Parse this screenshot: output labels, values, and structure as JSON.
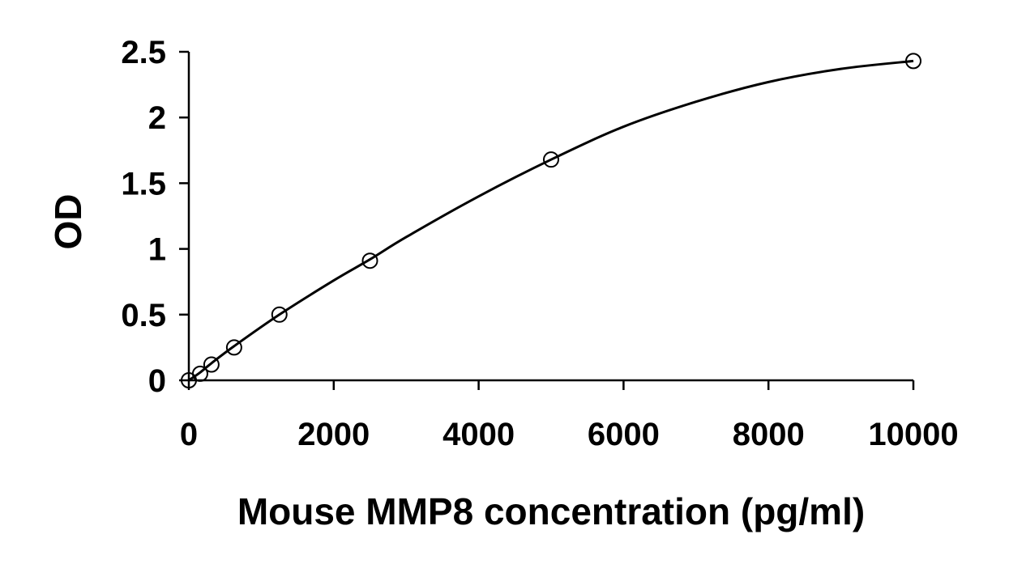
{
  "chart_data": {
    "type": "scatter",
    "title": "",
    "xlabel": "Mouse MMP8 concentration (pg/ml)",
    "ylabel": "OD",
    "xlim": [
      0,
      10000
    ],
    "ylim": [
      0,
      2.5
    ],
    "x_ticks": [
      0,
      2000,
      4000,
      6000,
      8000,
      10000
    ],
    "y_ticks": [
      0,
      0.5,
      1,
      1.5,
      2,
      2.5
    ],
    "x_tick_labels": [
      "0",
      "2000",
      "4000",
      "6000",
      "8000",
      "10000"
    ],
    "y_tick_labels": [
      "0",
      "0.5",
      "1",
      "1.5",
      "2",
      "2.5"
    ],
    "grid": false,
    "legend": "none",
    "marker": "open-circle",
    "series": [
      {
        "x": [
          0,
          156,
          312,
          625,
          1250,
          2500,
          5000,
          10000
        ],
        "y": [
          0.0,
          0.05,
          0.12,
          0.25,
          0.5,
          0.91,
          1.68,
          2.43
        ]
      }
    ],
    "fit_curve": {
      "x": [
        0,
        156,
        312,
        625,
        1250,
        2000,
        2500,
        3000,
        4000,
        5000,
        6000,
        7000,
        8000,
        9000,
        10000
      ],
      "y": [
        0.0,
        0.06,
        0.13,
        0.26,
        0.5,
        0.76,
        0.92,
        1.09,
        1.4,
        1.68,
        1.93,
        2.12,
        2.27,
        2.37,
        2.43
      ]
    },
    "colors": {
      "line": "#000000",
      "marker_fill": "#ffffff",
      "marker_stroke": "#000000"
    }
  }
}
